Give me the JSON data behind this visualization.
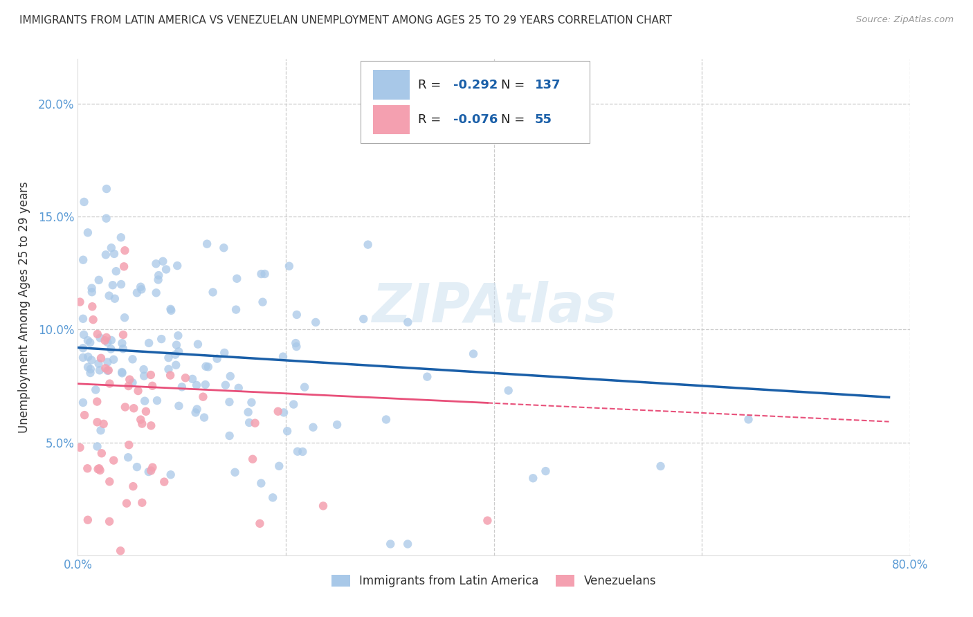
{
  "title": "IMMIGRANTS FROM LATIN AMERICA VS VENEZUELAN UNEMPLOYMENT AMONG AGES 25 TO 29 YEARS CORRELATION CHART",
  "source": "Source: ZipAtlas.com",
  "ylabel": "Unemployment Among Ages 25 to 29 years",
  "xlim": [
    0,
    0.8
  ],
  "ylim": [
    0,
    0.22
  ],
  "yticks": [
    0.0,
    0.05,
    0.1,
    0.15,
    0.2
  ],
  "ytick_labels": [
    "",
    "5.0%",
    "10.0%",
    "15.0%",
    "20.0%"
  ],
  "xticks": [
    0.0,
    0.2,
    0.4,
    0.6,
    0.8
  ],
  "xtick_labels": [
    "0.0%",
    "",
    "",
    "",
    "80.0%"
  ],
  "blue_color": "#a8c8e8",
  "pink_color": "#f4a0b0",
  "blue_line_color": "#1a5fa8",
  "pink_line_color": "#e8507a",
  "R_blue": -0.292,
  "N_blue": 137,
  "R_pink": -0.076,
  "N_pink": 55,
  "legend1_label": "Immigrants from Latin America",
  "legend2_label": "Venezuelans",
  "watermark": "ZIPAtlas",
  "background_color": "#ffffff",
  "grid_color": "#cccccc",
  "tick_color": "#5b9bd5",
  "text_color": "#333333",
  "source_color": "#999999"
}
